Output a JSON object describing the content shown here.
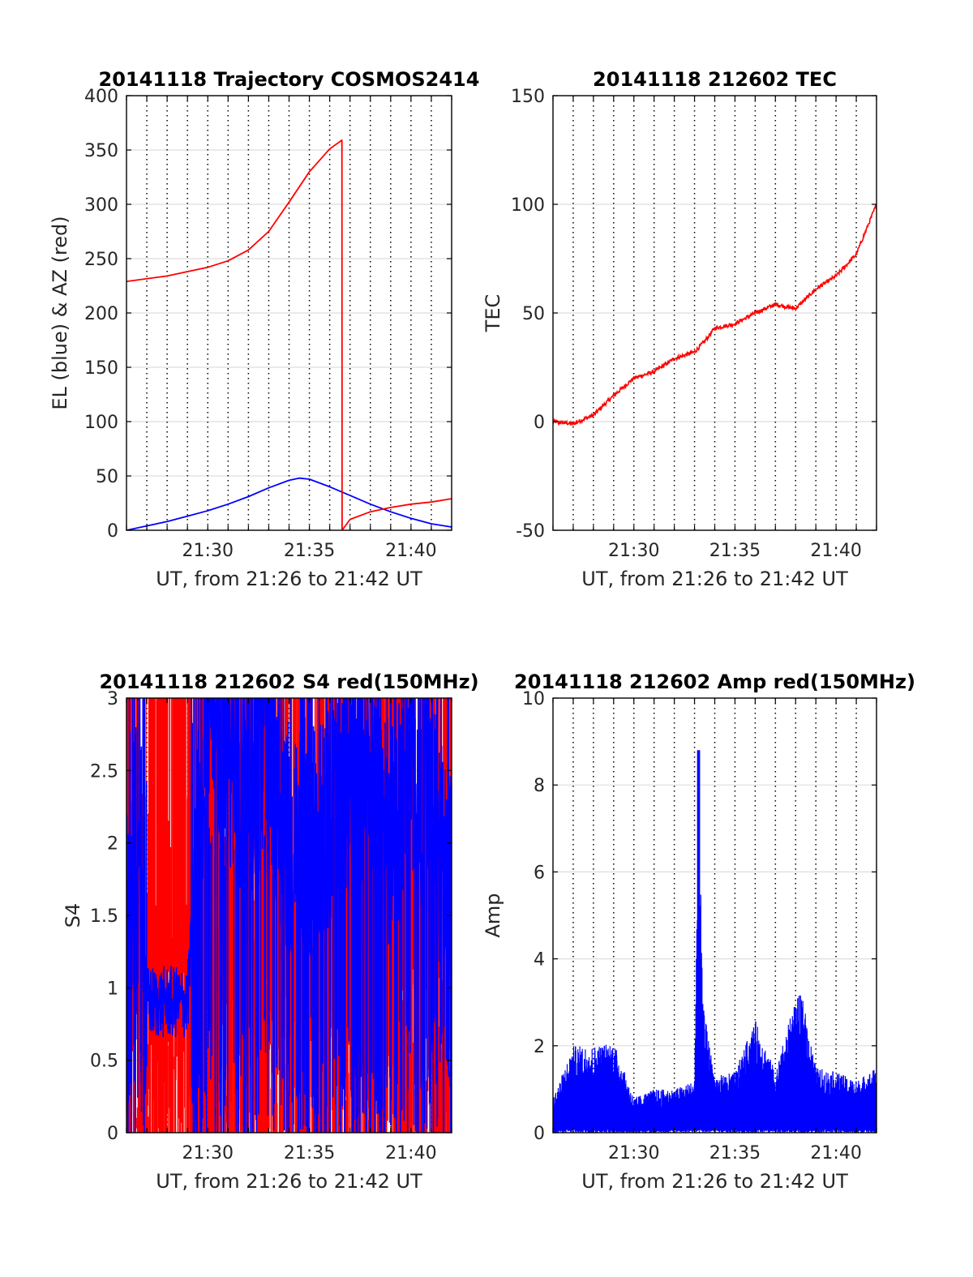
{
  "colors": {
    "el_line": "#0000ff",
    "az_line": "#ff0000",
    "tec_line": "#ff0000",
    "s4_red": "#ff0000",
    "s4_blue": "#0000ff",
    "amp_line": "#0000ff",
    "grid": "#dddddd",
    "axis": "#000000"
  },
  "chart_data": [
    {
      "id": "traj",
      "type": "line",
      "title": "20141118 Trajectory COSMOS2414",
      "xlabel": "UT, from 21:26 to 21:42 UT",
      "ylabel": "EL (blue) & AZ (red)",
      "xlim": [
        0,
        16
      ],
      "ylim": [
        0,
        400
      ],
      "xticks": [
        "21:30",
        "21:35",
        "21:40"
      ],
      "yticks": [
        "0",
        "50",
        "100",
        "150",
        "200",
        "250",
        "300",
        "350",
        "400"
      ],
      "grid": true,
      "series": [
        {
          "color": "blue",
          "x": [
            "21:26",
            "21:27",
            "21:28",
            "21:29",
            "21:30",
            "21:31",
            "21:32",
            "21:33",
            "21:34",
            "21:34.5",
            "21:35",
            "21:36",
            "21:37",
            "21:38",
            "21:39",
            "21:40",
            "21:41",
            "21:42"
          ],
          "y": [
            0,
            4,
            8,
            13,
            18,
            24,
            31,
            39,
            46,
            48,
            47,
            40,
            32,
            24,
            17,
            11,
            6,
            3
          ]
        },
        {
          "color": "red",
          "x": [
            "21:26",
            "21:28",
            "21:30",
            "21:31",
            "21:32",
            "21:33",
            "21:34",
            "21:35",
            "21:36",
            "21:36.6",
            "21:36.61",
            "21:37",
            "21:38",
            "21:39",
            "21:40",
            "21:41",
            "21:42"
          ],
          "y": [
            229,
            234,
            242,
            248,
            258,
            275,
            302,
            330,
            351,
            359,
            0,
            10,
            17,
            21,
            24,
            26,
            29
          ]
        }
      ]
    },
    {
      "id": "tec",
      "type": "line",
      "title": "20141118 212602 TEC",
      "xlabel": "UT, from 21:26 to 21:42 UT",
      "ylabel": "TEC",
      "xlim": [
        0,
        16
      ],
      "ylim": [
        -50,
        150
      ],
      "xticks": [
        "21:30",
        "21:35",
        "21:40"
      ],
      "yticks": [
        "-50",
        "0",
        "50",
        "100",
        "150"
      ],
      "grid": true,
      "series": [
        {
          "color": "red",
          "x": [
            "21:26",
            "21:27",
            "21:28",
            "21:29",
            "21:30",
            "21:31",
            "21:32",
            "21:33",
            "21:33.5",
            "21:34",
            "21:35",
            "21:36",
            "21:37",
            "21:38",
            "21:39",
            "21:40",
            "21:41",
            "21:42"
          ],
          "y": [
            0,
            -1,
            3,
            12,
            20,
            23,
            29,
            32,
            37,
            43,
            45,
            50,
            54,
            52,
            61,
            67,
            77,
            100
          ]
        }
      ]
    },
    {
      "id": "s4",
      "type": "line",
      "title": "20141118 212602 S4 red(150MHz)",
      "xlabel": "UT, from 21:26 to 21:42 UT",
      "ylabel": "S4",
      "xlim": [
        0,
        16
      ],
      "ylim": [
        0,
        3
      ],
      "xticks": [
        "21:30",
        "21:35",
        "21:40"
      ],
      "yticks": [
        "0",
        "0.5",
        "1",
        "1.5",
        "2",
        "2.5",
        "3"
      ],
      "grid": true,
      "series": [
        {
          "color": "red",
          "x": [
            "21:26",
            "21:28",
            "21:30",
            "21:32",
            "21:34",
            "21:36",
            "21:38",
            "21:40",
            "21:42"
          ],
          "y": [
            3,
            0,
            3,
            0,
            3,
            0,
            3,
            0,
            3
          ]
        },
        {
          "color": "blue",
          "x": [
            "21:26",
            "21:27",
            "21:28",
            "21:29",
            "21:30",
            "21:31",
            "21:32",
            "21:33",
            "21:34",
            "21:35",
            "21:36",
            "21:37",
            "21:38",
            "21:39",
            "21:40",
            "21:41",
            "21:42"
          ],
          "y": [
            2.0,
            0.9,
            0.9,
            0.9,
            3.0,
            2.6,
            2.4,
            2.6,
            2.0,
            2.0,
            2.2,
            2.4,
            2.5,
            2.0,
            2.6,
            2.1,
            1.6
          ]
        }
      ]
    },
    {
      "id": "amp",
      "type": "line",
      "title": "20141118 212602 Amp red(150MHz)",
      "xlabel": "UT, from 21:26 to 21:42 UT",
      "ylabel": "Amp",
      "xlim": [
        0,
        16
      ],
      "ylim": [
        0,
        10
      ],
      "xticks": [
        "21:30",
        "21:35",
        "21:40"
      ],
      "yticks": [
        "0",
        "2",
        "4",
        "6",
        "8",
        "10"
      ],
      "grid": true,
      "series": [
        {
          "color": "blue",
          "x": [
            "21:26",
            "21:27",
            "21:28",
            "21:29",
            "21:30",
            "21:31",
            "21:32",
            "21:33",
            "21:33.2",
            "21:33.4",
            "21:34",
            "21:35",
            "21:36",
            "21:37",
            "21:38",
            "21:38.3",
            "21:39",
            "21:40",
            "21:41",
            "21:42"
          ],
          "y": [
            0.8,
            2.0,
            2.0,
            2.1,
            0.8,
            1.0,
            1.0,
            1.2,
            8.8,
            3.0,
            1.3,
            1.4,
            2.6,
            1.4,
            3.1,
            3.2,
            1.5,
            1.4,
            1.2,
            1.5
          ]
        }
      ]
    }
  ]
}
